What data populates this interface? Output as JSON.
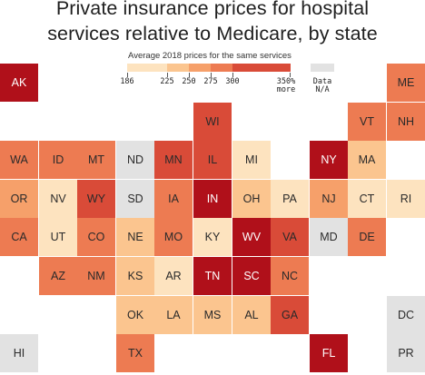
{
  "title_line1": "Private insurance prices for hospital",
  "title_line2": "services relative to Medicare, by state",
  "legend": {
    "caption": "Average 2018 prices for the same services",
    "ticks": [
      "186",
      "225",
      "250",
      "275",
      "300",
      "350% more"
    ],
    "na_label": "Data N/A",
    "colors": [
      "#fde3bf",
      "#fbc58f",
      "#f6a06a",
      "#ed7b52",
      "#d94b38",
      "#b0101a"
    ],
    "na_color": "#e2e2e2"
  },
  "states": [
    {
      "abbr": "AK",
      "col": 0,
      "row": 0,
      "bin": 5
    },
    {
      "abbr": "ME",
      "col": 10,
      "row": 0,
      "bin": 3
    },
    {
      "abbr": "WI",
      "col": 5,
      "row": 1,
      "bin": 4
    },
    {
      "abbr": "VT",
      "col": 9,
      "row": 1,
      "bin": 3
    },
    {
      "abbr": "NH",
      "col": 10,
      "row": 1,
      "bin": 3
    },
    {
      "abbr": "WA",
      "col": 0,
      "row": 2,
      "bin": 3
    },
    {
      "abbr": "ID",
      "col": 1,
      "row": 2,
      "bin": 3
    },
    {
      "abbr": "MT",
      "col": 2,
      "row": 2,
      "bin": 3
    },
    {
      "abbr": "ND",
      "col": 3,
      "row": 2,
      "bin": -1
    },
    {
      "abbr": "MN",
      "col": 4,
      "row": 2,
      "bin": 4
    },
    {
      "abbr": "IL",
      "col": 5,
      "row": 2,
      "bin": 4
    },
    {
      "abbr": "MI",
      "col": 6,
      "row": 2,
      "bin": 0
    },
    {
      "abbr": "NY",
      "col": 8,
      "row": 2,
      "bin": 5
    },
    {
      "abbr": "MA",
      "col": 9,
      "row": 2,
      "bin": 1
    },
    {
      "abbr": "OR",
      "col": 0,
      "row": 3,
      "bin": 2
    },
    {
      "abbr": "NV",
      "col": 1,
      "row": 3,
      "bin": 0
    },
    {
      "abbr": "WY",
      "col": 2,
      "row": 3,
      "bin": 4
    },
    {
      "abbr": "SD",
      "col": 3,
      "row": 3,
      "bin": -1
    },
    {
      "abbr": "IA",
      "col": 4,
      "row": 3,
      "bin": 3
    },
    {
      "abbr": "IN",
      "col": 5,
      "row": 3,
      "bin": 5
    },
    {
      "abbr": "OH",
      "col": 6,
      "row": 3,
      "bin": 1
    },
    {
      "abbr": "PA",
      "col": 7,
      "row": 3,
      "bin": 0
    },
    {
      "abbr": "NJ",
      "col": 8,
      "row": 3,
      "bin": 2
    },
    {
      "abbr": "CT",
      "col": 9,
      "row": 3,
      "bin": 0
    },
    {
      "abbr": "RI",
      "col": 10,
      "row": 3,
      "bin": 0
    },
    {
      "abbr": "CA",
      "col": 0,
      "row": 4,
      "bin": 3
    },
    {
      "abbr": "UT",
      "col": 1,
      "row": 4,
      "bin": 0
    },
    {
      "abbr": "CO",
      "col": 2,
      "row": 4,
      "bin": 3
    },
    {
      "abbr": "NE",
      "col": 3,
      "row": 4,
      "bin": 1
    },
    {
      "abbr": "MO",
      "col": 4,
      "row": 4,
      "bin": 3
    },
    {
      "abbr": "KY",
      "col": 5,
      "row": 4,
      "bin": 0
    },
    {
      "abbr": "WV",
      "col": 6,
      "row": 4,
      "bin": 5
    },
    {
      "abbr": "VA",
      "col": 7,
      "row": 4,
      "bin": 4
    },
    {
      "abbr": "MD",
      "col": 8,
      "row": 4,
      "bin": -1
    },
    {
      "abbr": "DE",
      "col": 9,
      "row": 4,
      "bin": 3
    },
    {
      "abbr": "AZ",
      "col": 1,
      "row": 5,
      "bin": 3
    },
    {
      "abbr": "NM",
      "col": 2,
      "row": 5,
      "bin": 3
    },
    {
      "abbr": "KS",
      "col": 3,
      "row": 5,
      "bin": 1
    },
    {
      "abbr": "AR",
      "col": 4,
      "row": 5,
      "bin": 0
    },
    {
      "abbr": "TN",
      "col": 5,
      "row": 5,
      "bin": 5
    },
    {
      "abbr": "SC",
      "col": 6,
      "row": 5,
      "bin": 5
    },
    {
      "abbr": "NC",
      "col": 7,
      "row": 5,
      "bin": 3
    },
    {
      "abbr": "OK",
      "col": 3,
      "row": 6,
      "bin": 1
    },
    {
      "abbr": "LA",
      "col": 4,
      "row": 6,
      "bin": 1
    },
    {
      "abbr": "MS",
      "col": 5,
      "row": 6,
      "bin": 1
    },
    {
      "abbr": "AL",
      "col": 6,
      "row": 6,
      "bin": 1
    },
    {
      "abbr": "GA",
      "col": 7,
      "row": 6,
      "bin": 4
    },
    {
      "abbr": "DC",
      "col": 10,
      "row": 6,
      "bin": -1
    },
    {
      "abbr": "HI",
      "col": 0,
      "row": 7,
      "bin": -1
    },
    {
      "abbr": "TX",
      "col": 3,
      "row": 7,
      "bin": 3
    },
    {
      "abbr": "FL",
      "col": 8,
      "row": 7,
      "bin": 5
    },
    {
      "abbr": "PR",
      "col": 10,
      "row": 7,
      "bin": -1
    }
  ]
}
